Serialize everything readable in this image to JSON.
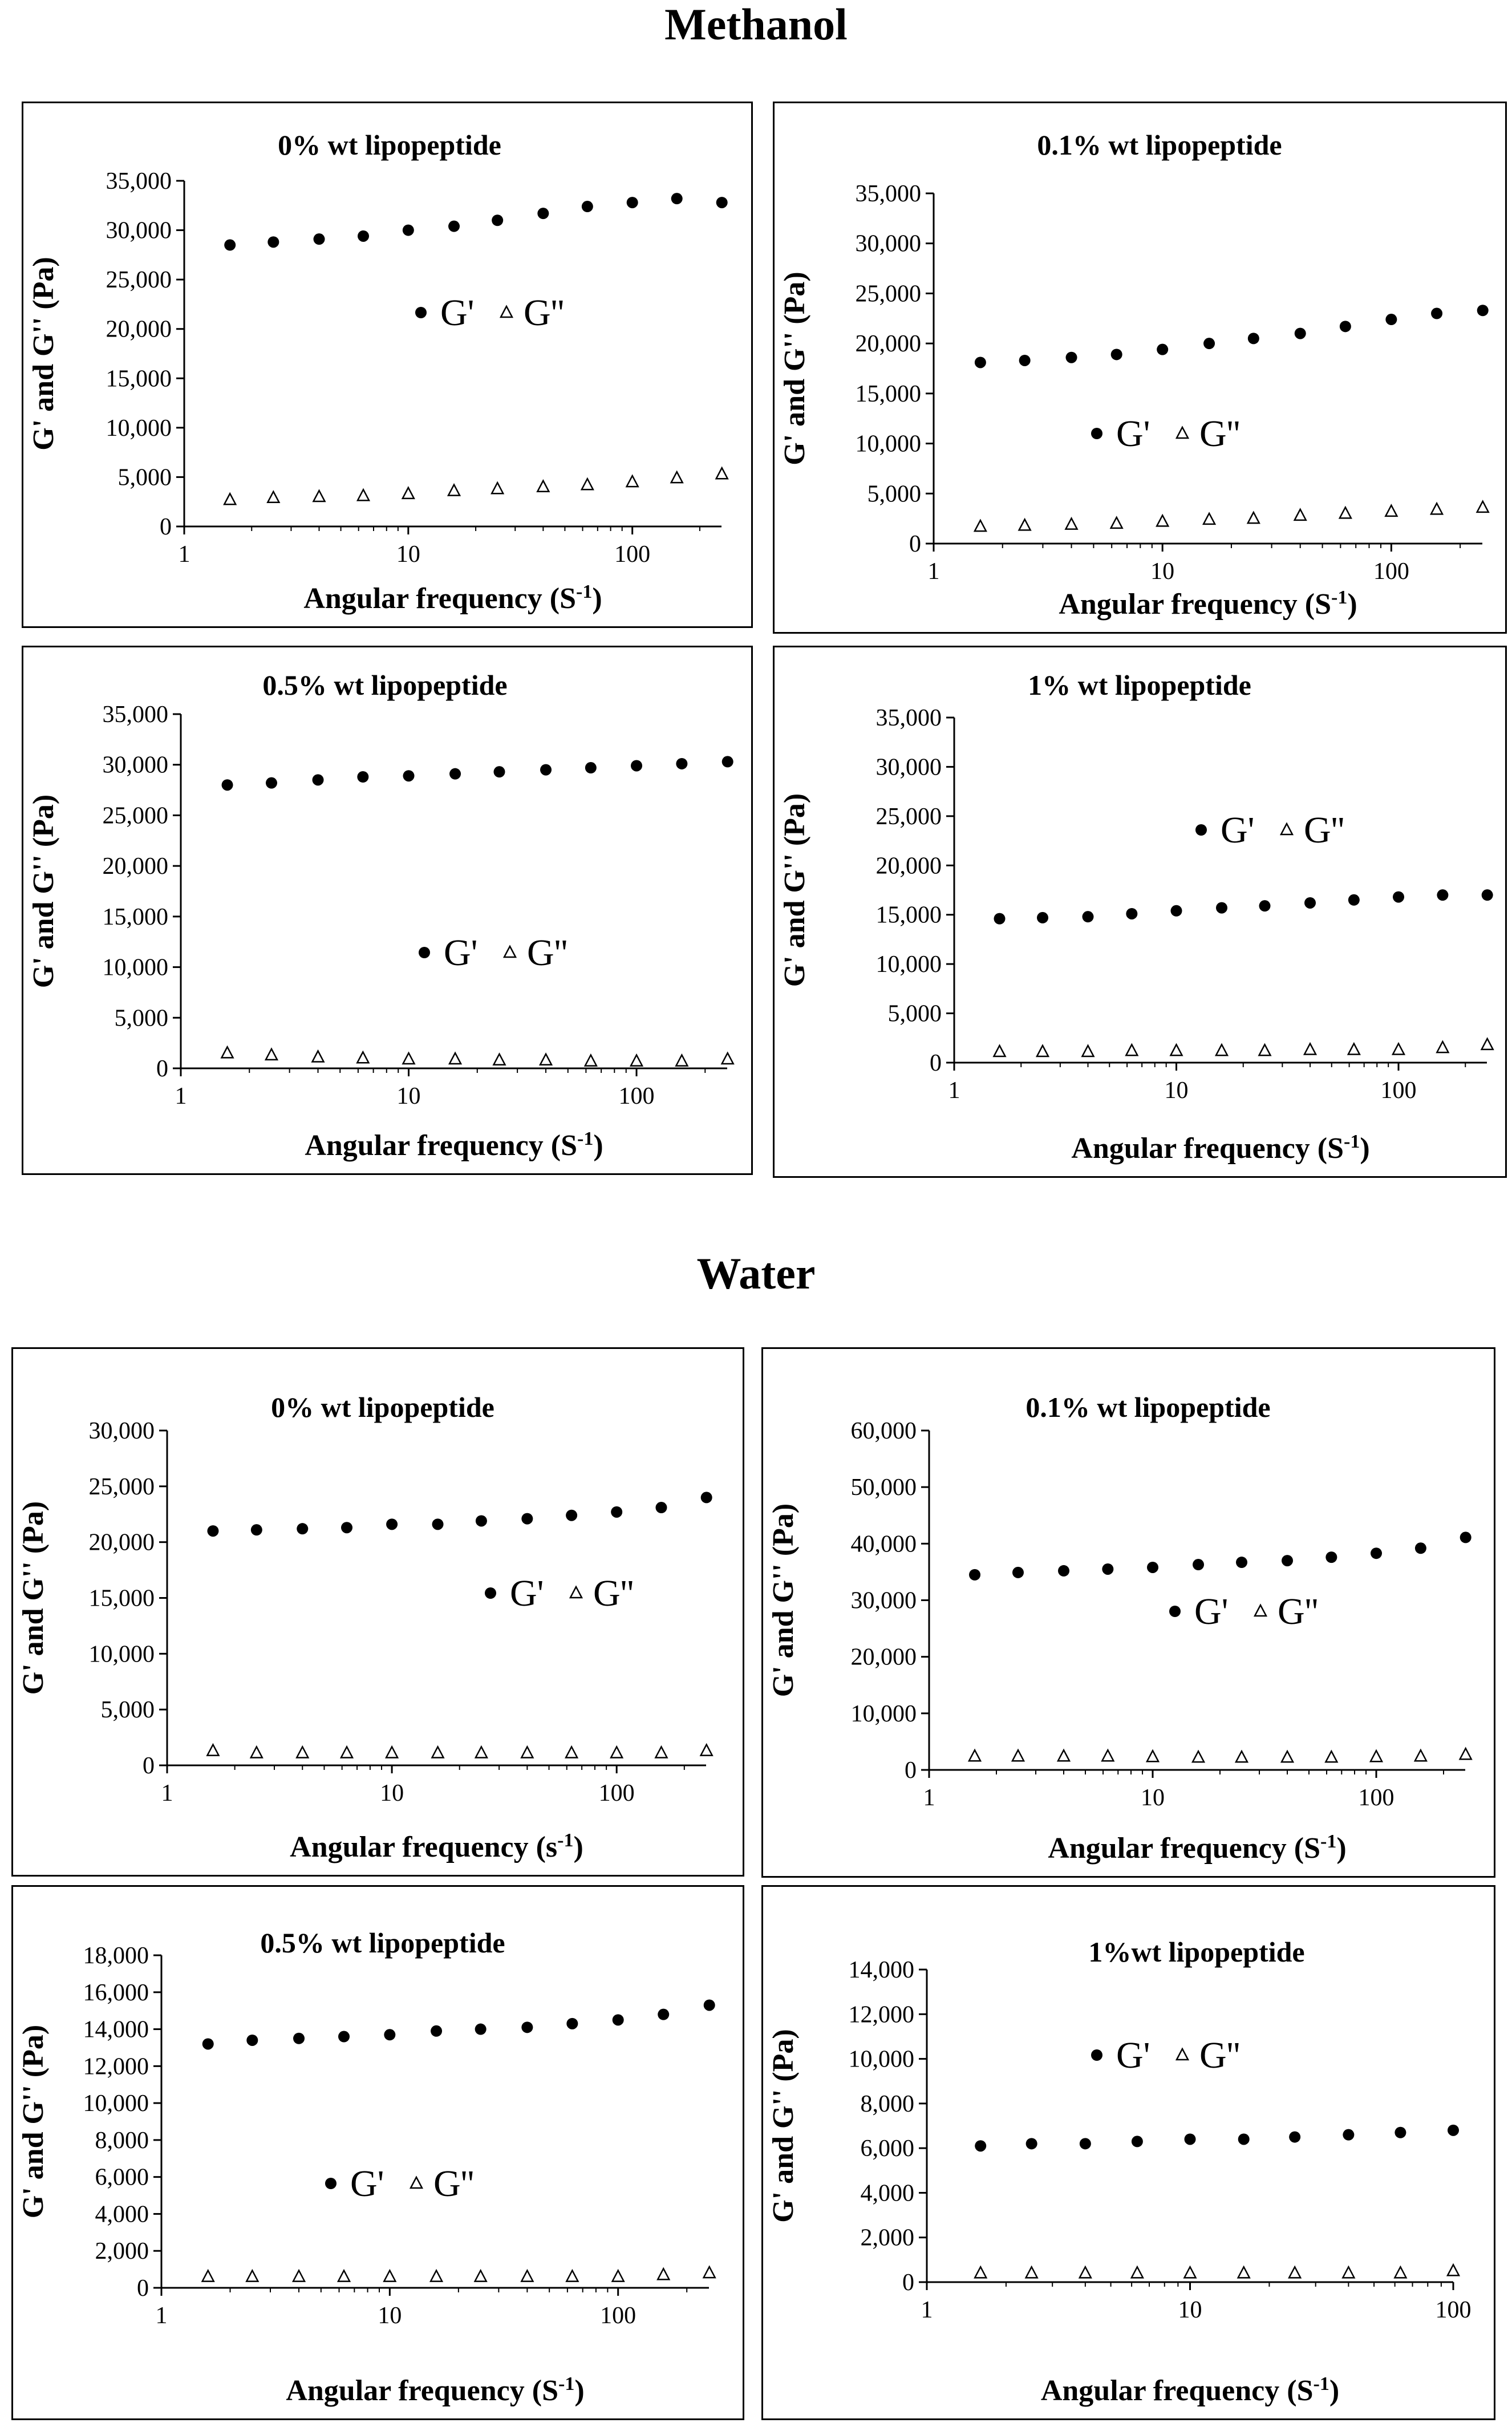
{
  "sections": [
    {
      "title": "Methanol"
    },
    {
      "title": "Water"
    }
  ],
  "chart_data": [
    {
      "type": "scatter",
      "section": "Methanol",
      "title": "0% wt lipopeptide",
      "xlabel": "Angular frequency (S",
      "xlabel_sup": "-1",
      "xlabel_end": ")",
      "ylabel": "G' and G'' (Pa)",
      "x_scale": "log",
      "xlim": [
        1,
        250
      ],
      "x_ticks": [
        "1",
        "10",
        "100"
      ],
      "ylim": [
        0,
        35000
      ],
      "y_ticks": [
        "0",
        "5,000",
        "10,000",
        "15,000",
        "20,000",
        "25,000",
        "30,000",
        "35,000"
      ],
      "legend": [
        "G'",
        "G''"
      ],
      "legend_position": "middle-left",
      "x": [
        1.6,
        2.5,
        4,
        6.3,
        10,
        16,
        25,
        40,
        63,
        100,
        158,
        251
      ],
      "series": [
        {
          "name": "G'",
          "marker": "filled-circle",
          "values": [
            28500,
            28800,
            29100,
            29400,
            30000,
            30400,
            31000,
            31700,
            32400,
            32800,
            33200,
            32800
          ]
        },
        {
          "name": "G''",
          "marker": "open-triangle",
          "values": [
            2700,
            2900,
            3000,
            3100,
            3300,
            3600,
            3800,
            4000,
            4200,
            4500,
            4900,
            5300
          ]
        }
      ]
    },
    {
      "type": "scatter",
      "section": "Methanol",
      "title": "0.1% wt lipopeptide",
      "xlabel": "Angular frequency (S",
      "xlabel_sup": "-1",
      "xlabel_end": ")",
      "ylabel": "G' and G'' (Pa)",
      "x_scale": "log",
      "xlim": [
        1,
        250
      ],
      "x_ticks": [
        "1",
        "10",
        "100"
      ],
      "ylim": [
        0,
        35000
      ],
      "y_ticks": [
        "0",
        "5,000",
        "10,000",
        "15,000",
        "20,000",
        "25,000",
        "30,000",
        "35,000"
      ],
      "legend": [
        "G'",
        "G''"
      ],
      "legend_position": "middle-left",
      "x": [
        1.6,
        2.5,
        4,
        6.3,
        10,
        16,
        25,
        40,
        63,
        100,
        158,
        251
      ],
      "series": [
        {
          "name": "G'",
          "marker": "filled-circle",
          "values": [
            18100,
            18300,
            18600,
            18900,
            19400,
            20000,
            20500,
            21000,
            21700,
            22400,
            23000,
            23300
          ]
        },
        {
          "name": "G''",
          "marker": "open-triangle",
          "values": [
            1700,
            1800,
            1900,
            2000,
            2200,
            2400,
            2500,
            2800,
            3000,
            3200,
            3400,
            3600
          ]
        }
      ]
    },
    {
      "type": "scatter",
      "section": "Methanol",
      "title": "0.5% wt lipopeptide",
      "xlabel": "Angular frequency (S",
      "xlabel_sup": "-1",
      "xlabel_end": ")",
      "ylabel": "G' and G'' (Pa)",
      "x_scale": "log",
      "xlim": [
        1,
        250
      ],
      "x_ticks": [
        "1",
        "10",
        "100"
      ],
      "ylim": [
        0,
        35000
      ],
      "y_ticks": [
        "0",
        "5,000",
        "10,000",
        "15,000",
        "20,000",
        "25,000",
        "30,000",
        "35,000"
      ],
      "legend": [
        "G'",
        "G''"
      ],
      "legend_position": "bottom-center",
      "x": [
        1.6,
        2.5,
        4,
        6.3,
        10,
        16,
        25,
        40,
        63,
        100,
        158,
        251
      ],
      "series": [
        {
          "name": "G'",
          "marker": "filled-circle",
          "values": [
            28000,
            28200,
            28500,
            28800,
            28900,
            29100,
            29300,
            29500,
            29700,
            29900,
            30100,
            30300
          ]
        },
        {
          "name": "G''",
          "marker": "open-triangle",
          "values": [
            1500,
            1300,
            1100,
            1000,
            900,
            900,
            800,
            800,
            700,
            700,
            700,
            900
          ]
        }
      ]
    },
    {
      "type": "scatter",
      "section": "Methanol",
      "title": "1% wt lipopeptide",
      "xlabel": "Angular frequency (S",
      "xlabel_sup": "-1",
      "xlabel_end": ")",
      "ylabel": "G' and G'' (Pa)",
      "x_scale": "log",
      "xlim": [
        1,
        250
      ],
      "x_ticks": [
        "1",
        "10",
        "100"
      ],
      "ylim": [
        0,
        35000
      ],
      "y_ticks": [
        "0",
        "5,000",
        "10,000",
        "15,000",
        "20,000",
        "25,000",
        "30,000",
        "35,000"
      ],
      "legend": [
        "G'",
        "G''"
      ],
      "legend_position": "top-center",
      "x": [
        1.6,
        2.5,
        4,
        6.3,
        10,
        16,
        25,
        40,
        63,
        100,
        158,
        251
      ],
      "series": [
        {
          "name": "G'",
          "marker": "filled-circle",
          "values": [
            14600,
            14700,
            14800,
            15100,
            15400,
            15700,
            15900,
            16200,
            16500,
            16800,
            17000,
            17000
          ]
        },
        {
          "name": "G''",
          "marker": "open-triangle",
          "values": [
            1100,
            1100,
            1100,
            1200,
            1200,
            1200,
            1200,
            1300,
            1300,
            1300,
            1500,
            1800
          ]
        }
      ]
    },
    {
      "type": "scatter",
      "section": "Water",
      "title": "0% wt lipopeptide",
      "xlabel": "Angular frequency (s",
      "xlabel_sup": "-1",
      "xlabel_end": ")",
      "ylabel": "G' and G'' (Pa)",
      "x_scale": "log",
      "xlim": [
        1,
        250
      ],
      "x_ticks": [
        "1",
        "10",
        "100"
      ],
      "ylim": [
        0,
        30000
      ],
      "y_ticks": [
        "0",
        "5,000",
        "10,000",
        "15,000",
        "20,000",
        "25,000",
        "30,000"
      ],
      "legend": [
        "G'",
        "G''"
      ],
      "legend_position": "middle-right",
      "x": [
        1.6,
        2.5,
        4,
        6.3,
        10,
        16,
        25,
        40,
        63,
        100,
        158,
        251
      ],
      "series": [
        {
          "name": "G'",
          "marker": "filled-circle",
          "values": [
            21000,
            21100,
            21200,
            21300,
            21600,
            21600,
            21900,
            22100,
            22400,
            22700,
            23100,
            24000
          ]
        },
        {
          "name": "G''",
          "marker": "open-triangle",
          "values": [
            1300,
            1100,
            1100,
            1100,
            1100,
            1100,
            1100,
            1100,
            1100,
            1100,
            1100,
            1300
          ]
        }
      ]
    },
    {
      "type": "scatter",
      "section": "Water",
      "title": "0.1% wt lipopeptide",
      "xlabel": "Angular frequency (S",
      "xlabel_sup": "-1",
      "xlabel_end": ")",
      "ylabel": "G' and G'' (Pa)",
      "x_scale": "log",
      "xlim": [
        1,
        250
      ],
      "x_ticks": [
        "1",
        "10",
        "100"
      ],
      "ylim": [
        0,
        60000
      ],
      "y_ticks": [
        "0",
        "10,000",
        "20,000",
        "30,000",
        "40,000",
        "50,000",
        "60,000"
      ],
      "legend": [
        "G'",
        "G''"
      ],
      "legend_position": "middle-center",
      "x": [
        1.6,
        2.5,
        4,
        6.3,
        10,
        16,
        25,
        40,
        63,
        100,
        158,
        251
      ],
      "series": [
        {
          "name": "G'",
          "marker": "filled-circle",
          "values": [
            34500,
            34900,
            35200,
            35500,
            35800,
            36300,
            36700,
            37000,
            37600,
            38300,
            39200,
            41100
          ]
        },
        {
          "name": "G''",
          "marker": "open-triangle",
          "values": [
            2400,
            2400,
            2400,
            2400,
            2300,
            2200,
            2200,
            2200,
            2200,
            2300,
            2400,
            2700
          ]
        }
      ]
    },
    {
      "type": "scatter",
      "section": "Water",
      "title": "0.5% wt lipopeptide",
      "xlabel": "Angular frequency (S",
      "xlabel_sup": "-1",
      "xlabel_end": ")",
      "ylabel": "G' and G'' (Pa)",
      "x_scale": "log",
      "xlim": [
        1,
        250
      ],
      "x_ticks": [
        "1",
        "10",
        "100"
      ],
      "ylim": [
        0,
        18000
      ],
      "y_ticks": [
        "0",
        "2,000",
        "4,000",
        "6,000",
        "8,000",
        "10,000",
        "12,000",
        "14,000",
        "16,000",
        "18,000"
      ],
      "legend": [
        "G'",
        "G''"
      ],
      "legend_position": "middle-left",
      "x": [
        1.6,
        2.5,
        4,
        6.3,
        10,
        16,
        25,
        40,
        63,
        100,
        158,
        251
      ],
      "series": [
        {
          "name": "G'",
          "marker": "filled-circle",
          "values": [
            13200,
            13400,
            13500,
            13600,
            13700,
            13900,
            14000,
            14100,
            14300,
            14500,
            14800,
            15300
          ]
        },
        {
          "name": "G''",
          "marker": "open-triangle",
          "values": [
            600,
            600,
            600,
            600,
            600,
            600,
            600,
            600,
            600,
            600,
            700,
            800
          ]
        }
      ]
    },
    {
      "type": "scatter",
      "section": "Water",
      "title": "1%wt lipopeptide",
      "xlabel": "Angular frequency (S",
      "xlabel_sup": "-1",
      "xlabel_end": ")",
      "ylabel": "G' and G'' (Pa)",
      "x_scale": "log",
      "xlim": [
        1,
        100
      ],
      "x_ticks": [
        "1",
        "10",
        "100"
      ],
      "ylim": [
        0,
        14000
      ],
      "y_ticks": [
        "0",
        "2,000",
        "4,000",
        "6,000",
        "8,000",
        "10,000",
        "12,000",
        "14,000"
      ],
      "legend": [
        "G'",
        "G''"
      ],
      "legend_position": "top-left",
      "x": [
        1.6,
        2.5,
        4,
        6.3,
        10,
        16,
        25,
        40,
        63,
        100
      ],
      "series": [
        {
          "name": "G'",
          "marker": "filled-circle",
          "values": [
            6100,
            6200,
            6200,
            6300,
            6400,
            6400,
            6500,
            6600,
            6700,
            6800
          ]
        },
        {
          "name": "G''",
          "marker": "open-triangle",
          "values": [
            400,
            400,
            400,
            400,
            400,
            400,
            400,
            400,
            400,
            500
          ]
        }
      ]
    }
  ]
}
